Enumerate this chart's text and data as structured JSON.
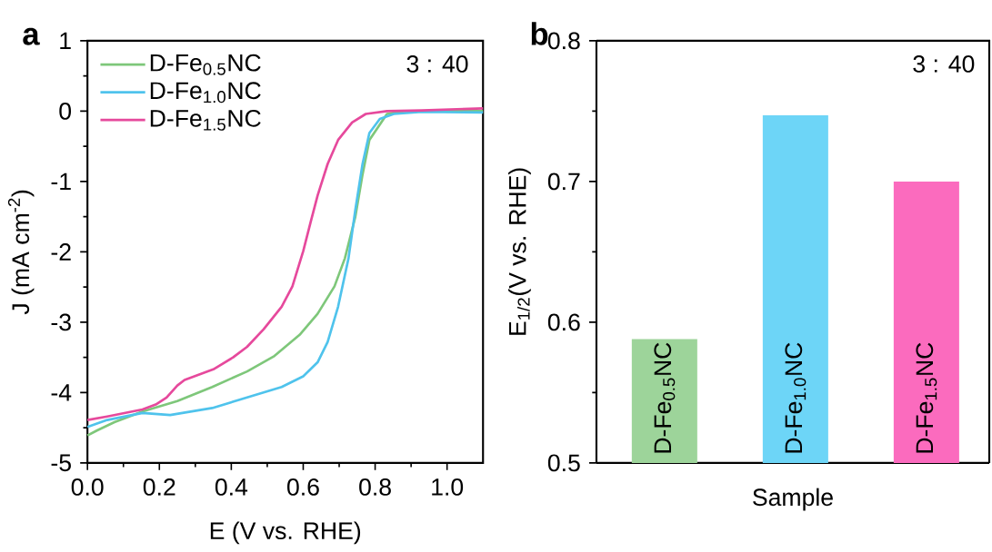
{
  "chart_data": [
    {
      "type": "line",
      "xlabel": "E (V vs. RHE)",
      "ylabel": "J (mA cm$^{-2}$)",
      "annotations": [
        "a",
        "3 : 40"
      ],
      "xlim": [
        0,
        1.1
      ],
      "ylim": [
        -5,
        1
      ],
      "xticks": [
        {
          "value": 0,
          "label": "0.0"
        },
        0.2,
        0.4,
        0.6,
        0.8,
        {
          "value": 1.0,
          "label": "1.0"
        }
      ],
      "yticks": [
        -5,
        -4,
        -3,
        -2,
        -1,
        0,
        1
      ],
      "legend": "top left",
      "grid": false,
      "marker": "none",
      "line_style": "solid",
      "series": [
        {
          "name": "D-Fe$_{0.5}$NC",
          "color": "#7ec77a",
          "x": [
            0,
            0.026,
            0.075,
            0.153,
            0.25,
            0.347,
            0.444,
            0.52,
            0.59,
            0.64,
            0.687,
            0.716,
            0.745,
            0.765,
            0.784,
            0.833,
            0.88,
            1.1
          ],
          "values": [
            -4.61,
            -4.54,
            -4.42,
            -4.27,
            -4.12,
            -3.92,
            -3.7,
            -3.48,
            -3.18,
            -2.88,
            -2.49,
            -2.09,
            -1.5,
            -0.9,
            -0.41,
            -0.04,
            0.0,
            0.0
          ]
        },
        {
          "name": "D-Fe$_{1.0}$NC",
          "color": "#4fc3ec",
          "x": [
            0,
            0.055,
            0.153,
            0.23,
            0.347,
            0.444,
            0.54,
            0.6,
            0.64,
            0.668,
            0.697,
            0.726,
            0.745,
            0.765,
            0.784,
            0.813,
            0.852,
            0.93,
            1.1
          ],
          "values": [
            -4.49,
            -4.39,
            -4.29,
            -4.32,
            -4.22,
            -4.07,
            -3.92,
            -3.77,
            -3.57,
            -3.28,
            -2.78,
            -2.09,
            -1.4,
            -0.75,
            -0.31,
            -0.11,
            -0.04,
            -0.01,
            -0.02
          ]
        },
        {
          "name": "D-Fe$_{1.5}$NC",
          "color": "#e6499c",
          "x": [
            0,
            0.055,
            0.153,
            0.19,
            0.22,
            0.25,
            0.27,
            0.35,
            0.405,
            0.444,
            0.49,
            0.54,
            0.57,
            0.6,
            0.62,
            0.64,
            0.668,
            0.697,
            0.736,
            0.774,
            0.833,
            0.93,
            1.1
          ],
          "values": [
            -4.39,
            -4.34,
            -4.24,
            -4.17,
            -4.07,
            -3.9,
            -3.82,
            -3.67,
            -3.5,
            -3.35,
            -3.1,
            -2.78,
            -2.49,
            -1.99,
            -1.59,
            -1.2,
            -0.75,
            -0.41,
            -0.16,
            -0.04,
            0.0,
            0.01,
            0.04
          ]
        }
      ]
    },
    {
      "type": "bar",
      "xlabel": "Sample",
      "ylabel": "E$_{1/2}$(V vs. RHE)",
      "annotations": [
        "b",
        "3 : 40"
      ],
      "categories": [
        "D-Fe$_{0.5}$NC",
        "D-Fe$_{1.0}$NC",
        "D-Fe$_{1.5}$NC"
      ],
      "values": [
        0.588,
        0.747,
        0.7
      ],
      "colors": [
        "#9dd49a",
        "#6dd5f7",
        "#fb6bbe"
      ],
      "ylim": [
        0.5,
        0.8
      ],
      "yticks": [
        0.5,
        0.6,
        0.7,
        0.8
      ],
      "grid": false
    }
  ]
}
